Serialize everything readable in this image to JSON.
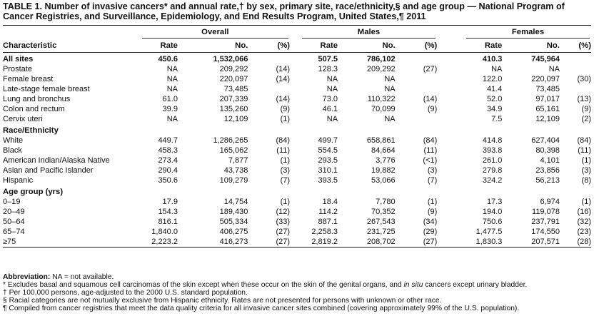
{
  "title": "TABLE 1. Number of invasive cancers* and annual rate,† by sex, primary site, race/ethnicity,§ and age group — National Program of Cancer Registries, and Surveillance, Epidemiology, and End Results Program, United States,¶ 2011",
  "groups": {
    "overall": "Overall",
    "males": "Males",
    "females": "Females"
  },
  "headers": {
    "characteristic": "Characteristic",
    "rate": "Rate",
    "no": "No.",
    "pct": "(%)"
  },
  "sections": [
    {
      "rows": [
        {
          "label": "All sites",
          "bold": true,
          "o": [
            "450.6",
            "1,532,066",
            ""
          ],
          "m": [
            "507.5",
            "786,102",
            ""
          ],
          "f": [
            "410.3",
            "745,964",
            ""
          ]
        },
        {
          "label": "Prostate",
          "o": [
            "NA",
            "209,292",
            "(14)"
          ],
          "m": [
            "128.3",
            "209,292",
            "(27)"
          ],
          "f": [
            "NA",
            "NA",
            ""
          ]
        },
        {
          "label": "Female breast",
          "o": [
            "NA",
            "220,097",
            "(14)"
          ],
          "m": [
            "NA",
            "NA",
            ""
          ],
          "f": [
            "122.0",
            "220,097",
            "(30)"
          ]
        },
        {
          "label": "Late-stage female breast",
          "o": [
            "NA",
            "73,485",
            ""
          ],
          "m": [
            "NA",
            "NA",
            ""
          ],
          "f": [
            "41.4",
            "73,485",
            ""
          ]
        },
        {
          "label": "Lung and bronchus",
          "o": [
            "61.0",
            "207,339",
            "(14)"
          ],
          "m": [
            "73.0",
            "110,322",
            "(14)"
          ],
          "f": [
            "52.0",
            "97,017",
            "(13)"
          ]
        },
        {
          "label": "Colon and rectum",
          "o": [
            "39.9",
            "135,260",
            "(9)"
          ],
          "m": [
            "46.1",
            "70,099",
            "(9)"
          ],
          "f": [
            "34.9",
            "65,161",
            "(9)"
          ]
        },
        {
          "label": "Cervix uteri",
          "o": [
            "NA",
            "12,109",
            "(1)"
          ],
          "m": [
            "NA",
            "NA",
            ""
          ],
          "f": [
            "7.5",
            "12,109",
            "(2)"
          ]
        }
      ]
    },
    {
      "heading": "Race/Ethnicity",
      "rows": [
        {
          "label": "White",
          "o": [
            "449.7",
            "1,286,265",
            "(84)"
          ],
          "m": [
            "499.7",
            "658,861",
            "(84)"
          ],
          "f": [
            "414.8",
            "627,404",
            "(84)"
          ]
        },
        {
          "label": "Black",
          "o": [
            "458.3",
            "165,062",
            "(11)"
          ],
          "m": [
            "554.5",
            "84,664",
            "(11)"
          ],
          "f": [
            "393.8",
            "80,398",
            "(11)"
          ]
        },
        {
          "label": "American Indian/Alaska Native",
          "o": [
            "273.4",
            "7,877",
            "(1)"
          ],
          "m": [
            "293.5",
            "3,776",
            "(<1)"
          ],
          "f": [
            "261.0",
            "4,101",
            "(1)"
          ]
        },
        {
          "label": "Asian and Pacific Islander",
          "o": [
            "290.4",
            "43,738",
            "(3)"
          ],
          "m": [
            "310.1",
            "19,882",
            "(3)"
          ],
          "f": [
            "279.8",
            "23,856",
            "(3)"
          ]
        },
        {
          "label": "Hispanic",
          "o": [
            "350.6",
            "109,279",
            "(7)"
          ],
          "m": [
            "393.5",
            "53,066",
            "(7)"
          ],
          "f": [
            "324.2",
            "56,213",
            "(8)"
          ]
        }
      ]
    },
    {
      "heading": "Age group (yrs)",
      "rows": [
        {
          "label": "0–19",
          "o": [
            "17.9",
            "14,754",
            "(1)"
          ],
          "m": [
            "18.4",
            "7,780",
            "(1)"
          ],
          "f": [
            "17.3",
            "6,974",
            "(1)"
          ]
        },
        {
          "label": "20–49",
          "o": [
            "154.3",
            "189,430",
            "(12)"
          ],
          "m": [
            "114.2",
            "70,352",
            "(9)"
          ],
          "f": [
            "194.0",
            "119,078",
            "(16)"
          ]
        },
        {
          "label": "50–64",
          "o": [
            "816.1",
            "505,334",
            "(33)"
          ],
          "m": [
            "887.1",
            "267,543",
            "(34)"
          ],
          "f": [
            "750.6",
            "237,791",
            "(32)"
          ]
        },
        {
          "label": "65–74",
          "o": [
            "1,840.0",
            "406,275",
            "(27)"
          ],
          "m": [
            "2,258.3",
            "231,725",
            "(29)"
          ],
          "f": [
            "1,477.5",
            "174,550",
            "(23)"
          ]
        },
        {
          "label": "≥75",
          "o": [
            "2,223.2",
            "416,273",
            "(27)"
          ],
          "m": [
            "2,819.2",
            "208,702",
            "(27)"
          ],
          "f": [
            "1,830.3",
            "207,571",
            "(28)"
          ]
        }
      ]
    }
  ],
  "footer": {
    "abbr_label": "Abbreviation:",
    "abbr_text": " NA = not available.",
    "note1_a": "* Excludes basal and squamous cell carcinomas of the skin except when these occur on the skin of the genital organs, and ",
    "note1_italic": "in situ",
    "note1_b": " cancers except urinary bladder.",
    "note2": "† Per 100,000 persons, age-adjusted to the 2000 U.S. standard population.",
    "note3": "§ Racial categories are not mutually exclusive from Hispanic ethnicity. Rates are not presented for persons with unknown or other race.",
    "note4": "¶ Compiled from cancer registries that meet the data quality criteria for all invasive cancer sites combined (covering approximately 99% of the U.S. population)."
  }
}
